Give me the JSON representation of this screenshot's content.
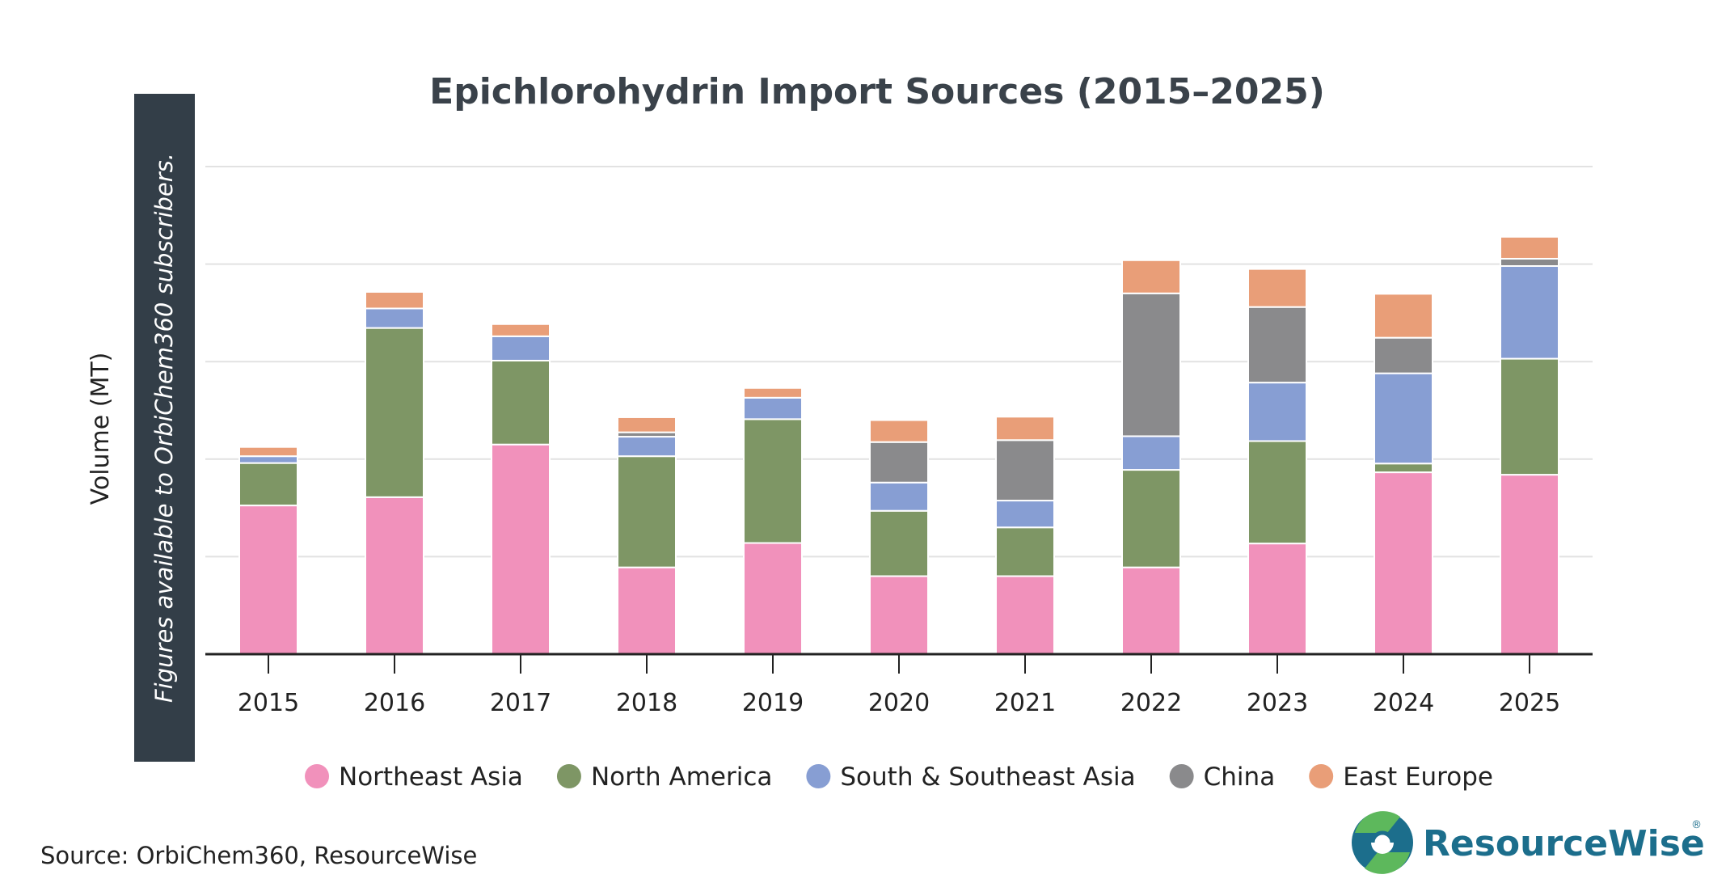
{
  "chart_data": {
    "type": "bar",
    "stacked": true,
    "title": "Epichlorohydrin Import Sources (2015–2025)",
    "ylabel": "Volume (MT)",
    "xlabel": "",
    "y_tick_labels_shown": false,
    "grid": true,
    "ylim": [
      0,
      1
    ],
    "legend_position": "bottom",
    "categories": [
      "2015",
      "2016",
      "2017",
      "2018",
      "2019",
      "2020",
      "2021",
      "2022",
      "2023",
      "2024",
      "2025"
    ],
    "series": [
      {
        "name": "Northeast Asia",
        "color": "#f191bb",
        "values": [
          0.305,
          0.322,
          0.43,
          0.178,
          0.228,
          0.16,
          0.16,
          0.178,
          0.227,
          0.373,
          0.368
        ]
      },
      {
        "name": "North America",
        "color": "#7e9665",
        "values": [
          0.087,
          0.347,
          0.172,
          0.228,
          0.254,
          0.134,
          0.1,
          0.2,
          0.21,
          0.018,
          0.238
        ]
      },
      {
        "name": "South & Southeast Asia",
        "color": "#879ed3",
        "values": [
          0.014,
          0.04,
          0.05,
          0.04,
          0.044,
          0.058,
          0.055,
          0.069,
          0.12,
          0.185,
          0.19
        ]
      },
      {
        "name": "China",
        "color": "#8a8a8c",
        "values": [
          0.0,
          0.0,
          0.0,
          0.009,
          0.0,
          0.083,
          0.124,
          0.293,
          0.155,
          0.073,
          0.015
        ]
      },
      {
        "name": "East Europe",
        "color": "#e99e78",
        "values": [
          0.019,
          0.034,
          0.025,
          0.031,
          0.02,
          0.045,
          0.048,
          0.068,
          0.078,
          0.09,
          0.045
        ]
      }
    ]
  },
  "banner": {
    "text": "Figures available to OrbiChem360 subscribers."
  },
  "footer": {
    "source": "Source: OrbiChem360, ResourceWise",
    "brand_name": "ResourceWise",
    "brand_mark": "®"
  },
  "colors": {
    "title": "#3a424a",
    "banner_bg": "#333e48",
    "grid": "#e2e2e2",
    "axis": "#222222",
    "brand": "#1c6e8c"
  }
}
